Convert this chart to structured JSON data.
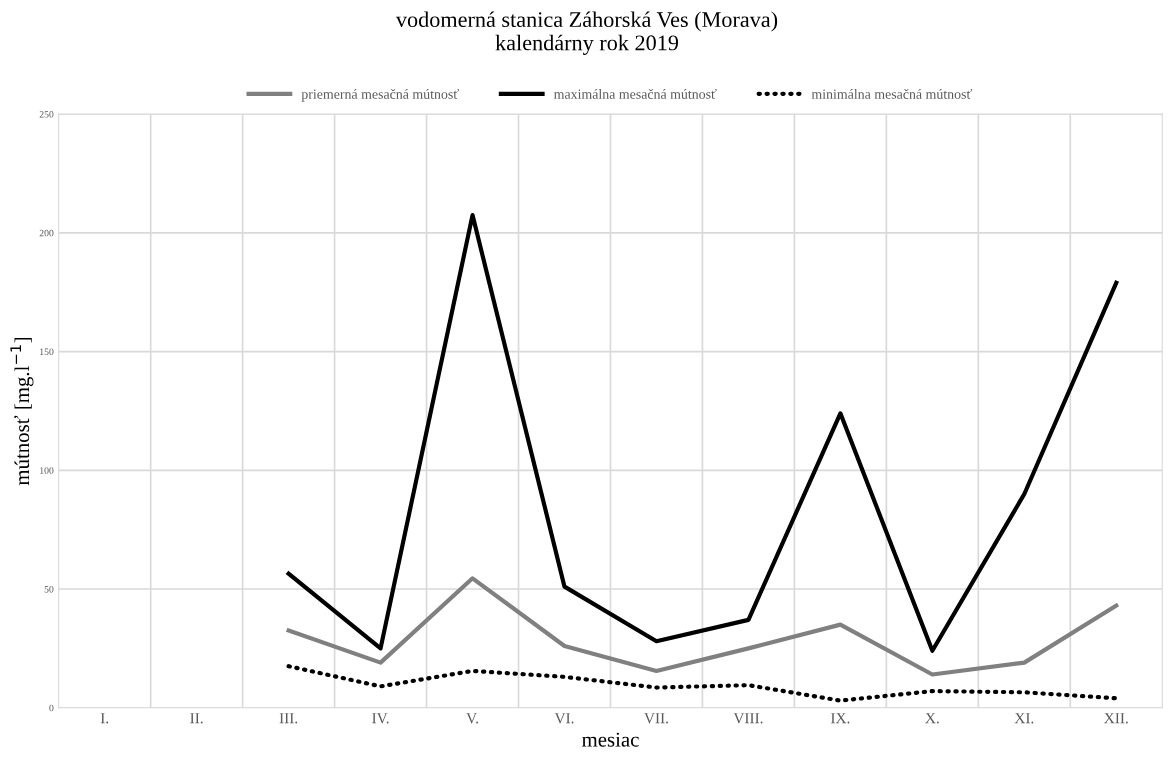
{
  "chart_data": {
    "type": "line",
    "title": "vodomerná stanica Záhorská Ves (Morava)\nkalendárny rok 2019",
    "xlabel": "mesiac",
    "ylabel": "mútnosť [mg.l$^{−1}$]",
    "categories": [
      "I.",
      "II.",
      "III.",
      "IV.",
      "V.",
      "VI.",
      "VII.",
      "VIII.",
      "IX.",
      "X.",
      "XI.",
      "XII."
    ],
    "series": [
      {
        "name": "priemerná mesačná mútnosť",
        "color": "#808080",
        "line_style": "solid",
        "values": [
          null,
          null,
          32.5,
          19,
          54.5,
          26,
          15.5,
          25,
          35,
          14,
          19,
          43
        ]
      },
      {
        "name": "maximálna mesačná mútnosť",
        "color": "#000000",
        "line_style": "solid",
        "values": [
          null,
          null,
          56.5,
          25,
          207.5,
          51,
          28,
          37,
          124,
          24,
          90,
          179
        ]
      },
      {
        "name": "minimálna mesačná mútnosť",
        "color": "#000000",
        "line_style": "dotted",
        "values": [
          null,
          null,
          17.5,
          9,
          15.5,
          13,
          8.5,
          9.5,
          3,
          7,
          6.5,
          4
        ]
      }
    ],
    "ylim": [
      0,
      250
    ],
    "yticks": [
      0,
      50,
      100,
      150,
      200,
      250
    ],
    "grid": true,
    "legend": "top"
  }
}
